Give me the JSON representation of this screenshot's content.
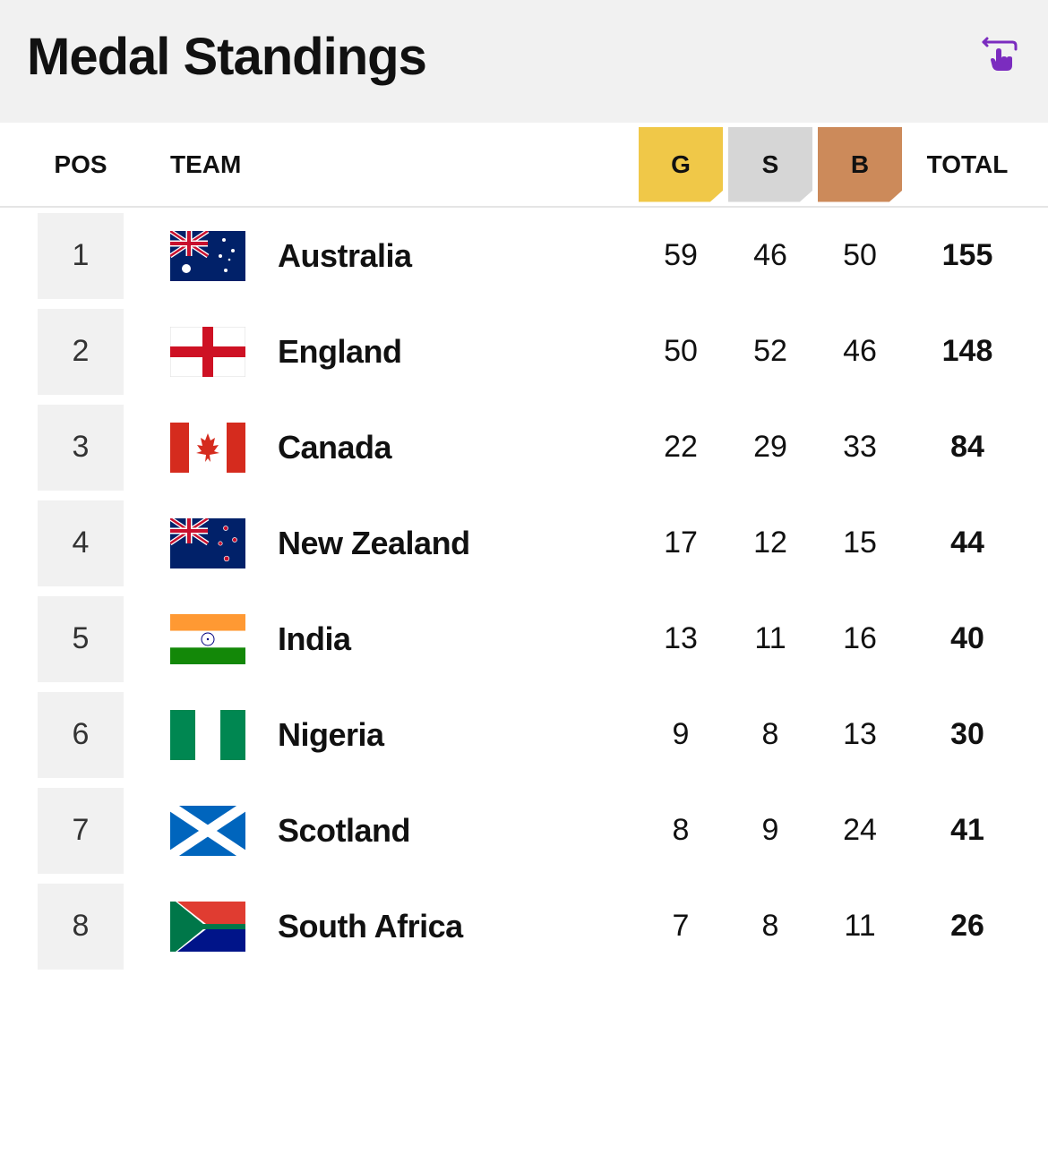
{
  "header": {
    "title": "Medal Standings"
  },
  "table": {
    "columns": {
      "pos": "POS",
      "team": "TEAM",
      "gold": "G",
      "silver": "S",
      "bronze": "B",
      "total": "TOTAL"
    },
    "medal_colors": {
      "gold": "#f0c848",
      "silver": "#d6d6d6",
      "bronze": "#cc8a5a"
    },
    "rows": [
      {
        "pos": "1",
        "team": "Australia",
        "flag": "australia",
        "gold": "59",
        "silver": "46",
        "bronze": "50",
        "total": "155"
      },
      {
        "pos": "2",
        "team": "England",
        "flag": "england",
        "gold": "50",
        "silver": "52",
        "bronze": "46",
        "total": "148"
      },
      {
        "pos": "3",
        "team": "Canada",
        "flag": "canada",
        "gold": "22",
        "silver": "29",
        "bronze": "33",
        "total": "84"
      },
      {
        "pos": "4",
        "team": "New Zealand",
        "flag": "newzealand",
        "gold": "17",
        "silver": "12",
        "bronze": "15",
        "total": "44"
      },
      {
        "pos": "5",
        "team": "India",
        "flag": "india",
        "gold": "13",
        "silver": "11",
        "bronze": "16",
        "total": "40"
      },
      {
        "pos": "6",
        "team": "Nigeria",
        "flag": "nigeria",
        "gold": "9",
        "silver": "8",
        "bronze": "13",
        "total": "30"
      },
      {
        "pos": "7",
        "team": "Scotland",
        "flag": "scotland",
        "gold": "8",
        "silver": "9",
        "bronze": "24",
        "total": "41"
      },
      {
        "pos": "8",
        "team": "South Africa",
        "flag": "southafrica",
        "gold": "7",
        "silver": "8",
        "bronze": "11",
        "total": "26"
      }
    ]
  },
  "colors": {
    "header_bg": "#f1f1f1",
    "pos_box_bg": "#f1f1f1",
    "accent": "#7b2cbf",
    "text": "#111111",
    "border": "#e5e5e5"
  }
}
